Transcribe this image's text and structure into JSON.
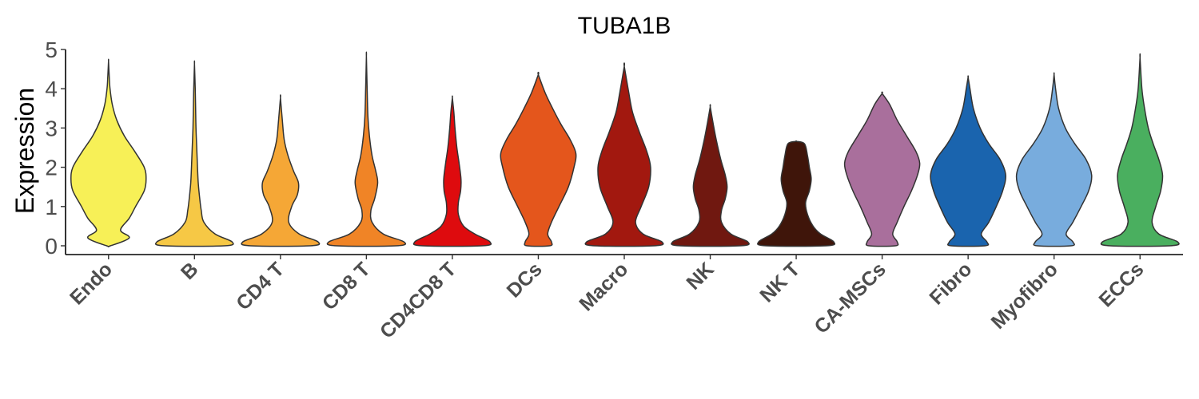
{
  "chart_data": {
    "type": "violin",
    "title": "TUBA1B",
    "xlabel": "",
    "ylabel": "Expression",
    "ylim": [
      0,
      5
    ],
    "yticks": [
      0,
      1,
      2,
      3,
      4,
      5
    ],
    "grid": false,
    "legend": "none",
    "categories": [
      "Endo",
      "B",
      "CD4 T",
      "CD8 T",
      "CD4CD8 T",
      "DCs",
      "Macro",
      "NK",
      "NK T",
      "CA-MSCs",
      "Fibro",
      "Myofibro",
      "ECCs"
    ],
    "colors": [
      "#F7F057",
      "#F6C845",
      "#F5A736",
      "#F08426",
      "#DE0B0E",
      "#E4561C",
      "#A2180F",
      "#701810",
      "#3F150A",
      "#A96F9C",
      "#1A64AE",
      "#78ACDD",
      "#4AAF5F"
    ],
    "max_values": [
      4.7,
      4.63,
      3.77,
      4.83,
      3.77,
      4.36,
      4.57,
      3.54,
      2.66,
      3.88,
      4.29,
      4.36,
      4.79
    ],
    "density_profiles": [
      [
        [
          0.0,
          0.05
        ],
        [
          0.2,
          0.55
        ],
        [
          0.4,
          0.32
        ],
        [
          0.7,
          0.55
        ],
        [
          1.0,
          0.72
        ],
        [
          1.4,
          0.95
        ],
        [
          1.7,
          1.0
        ],
        [
          2.0,
          0.95
        ],
        [
          2.4,
          0.7
        ],
        [
          2.8,
          0.42
        ],
        [
          3.2,
          0.22
        ],
        [
          3.6,
          0.1
        ],
        [
          4.0,
          0.04
        ],
        [
          4.3,
          0.02
        ],
        [
          4.7,
          0.0
        ]
      ],
      [
        [
          0.0,
          0.8
        ],
        [
          0.1,
          1.0
        ],
        [
          0.3,
          0.55
        ],
        [
          0.6,
          0.25
        ],
        [
          0.9,
          0.18
        ],
        [
          1.2,
          0.14
        ],
        [
          1.6,
          0.1
        ],
        [
          2.0,
          0.08
        ],
        [
          2.5,
          0.06
        ],
        [
          3.0,
          0.04
        ],
        [
          3.5,
          0.03
        ],
        [
          4.0,
          0.02
        ],
        [
          4.63,
          0.0
        ]
      ],
      [
        [
          0.0,
          0.8
        ],
        [
          0.1,
          1.0
        ],
        [
          0.3,
          0.5
        ],
        [
          0.6,
          0.22
        ],
        [
          1.0,
          0.3
        ],
        [
          1.3,
          0.45
        ],
        [
          1.6,
          0.48
        ],
        [
          1.9,
          0.35
        ],
        [
          2.3,
          0.2
        ],
        [
          2.7,
          0.1
        ],
        [
          3.2,
          0.05
        ],
        [
          3.77,
          0.0
        ]
      ],
      [
        [
          0.0,
          0.8
        ],
        [
          0.1,
          1.0
        ],
        [
          0.3,
          0.45
        ],
        [
          0.6,
          0.15
        ],
        [
          0.9,
          0.12
        ],
        [
          1.2,
          0.22
        ],
        [
          1.6,
          0.3
        ],
        [
          1.9,
          0.25
        ],
        [
          2.3,
          0.15
        ],
        [
          2.8,
          0.08
        ],
        [
          3.3,
          0.04
        ],
        [
          4.0,
          0.02
        ],
        [
          4.83,
          0.0
        ]
      ],
      [
        [
          0.0,
          0.8
        ],
        [
          0.1,
          1.0
        ],
        [
          0.3,
          0.6
        ],
        [
          0.5,
          0.3
        ],
        [
          0.8,
          0.16
        ],
        [
          1.1,
          0.16
        ],
        [
          1.4,
          0.22
        ],
        [
          1.7,
          0.23
        ],
        [
          2.1,
          0.18
        ],
        [
          2.5,
          0.12
        ],
        [
          3.0,
          0.07
        ],
        [
          3.4,
          0.04
        ],
        [
          3.77,
          0.0
        ]
      ],
      [
        [
          0.0,
          0.3
        ],
        [
          0.1,
          0.35
        ],
        [
          0.3,
          0.25
        ],
        [
          0.6,
          0.35
        ],
        [
          1.0,
          0.55
        ],
        [
          1.5,
          0.8
        ],
        [
          2.0,
          0.95
        ],
        [
          2.35,
          1.0
        ],
        [
          2.7,
          0.85
        ],
        [
          3.1,
          0.6
        ],
        [
          3.5,
          0.38
        ],
        [
          3.9,
          0.18
        ],
        [
          4.36,
          0.0
        ]
      ],
      [
        [
          0.0,
          0.8
        ],
        [
          0.1,
          1.0
        ],
        [
          0.3,
          0.5
        ],
        [
          0.6,
          0.3
        ],
        [
          1.0,
          0.45
        ],
        [
          1.5,
          0.65
        ],
        [
          2.0,
          0.7
        ],
        [
          2.4,
          0.6
        ],
        [
          2.9,
          0.4
        ],
        [
          3.4,
          0.22
        ],
        [
          3.9,
          0.12
        ],
        [
          4.57,
          0.0
        ]
      ],
      [
        [
          0.0,
          0.8
        ],
        [
          0.1,
          1.0
        ],
        [
          0.3,
          0.55
        ],
        [
          0.6,
          0.3
        ],
        [
          0.9,
          0.3
        ],
        [
          1.2,
          0.4
        ],
        [
          1.5,
          0.45
        ],
        [
          1.8,
          0.4
        ],
        [
          2.2,
          0.28
        ],
        [
          2.7,
          0.16
        ],
        [
          3.1,
          0.08
        ],
        [
          3.54,
          0.0
        ]
      ],
      [
        [
          0.0,
          0.8
        ],
        [
          0.1,
          1.0
        ],
        [
          0.3,
          0.65
        ],
        [
          0.5,
          0.45
        ],
        [
          0.8,
          0.3
        ],
        [
          1.1,
          0.25
        ],
        [
          1.4,
          0.35
        ],
        [
          1.7,
          0.4
        ],
        [
          2.0,
          0.35
        ],
        [
          2.3,
          0.3
        ],
        [
          2.6,
          0.22
        ],
        [
          2.66,
          0.0
        ]
      ],
      [
        [
          0.0,
          0.35
        ],
        [
          0.1,
          0.4
        ],
        [
          0.3,
          0.28
        ],
        [
          0.6,
          0.4
        ],
        [
          1.0,
          0.58
        ],
        [
          1.4,
          0.78
        ],
        [
          1.8,
          0.94
        ],
        [
          2.1,
          1.0
        ],
        [
          2.4,
          0.9
        ],
        [
          2.8,
          0.65
        ],
        [
          3.2,
          0.4
        ],
        [
          3.6,
          0.2
        ],
        [
          3.88,
          0.0
        ]
      ],
      [
        [
          0.0,
          0.45
        ],
        [
          0.1,
          0.5
        ],
        [
          0.3,
          0.35
        ],
        [
          0.6,
          0.55
        ],
        [
          1.0,
          0.75
        ],
        [
          1.4,
          0.92
        ],
        [
          1.8,
          1.0
        ],
        [
          2.2,
          0.85
        ],
        [
          2.6,
          0.55
        ],
        [
          3.0,
          0.32
        ],
        [
          3.5,
          0.14
        ],
        [
          4.0,
          0.05
        ],
        [
          4.29,
          0.0
        ]
      ],
      [
        [
          0.0,
          0.45
        ],
        [
          0.1,
          0.5
        ],
        [
          0.3,
          0.32
        ],
        [
          0.6,
          0.5
        ],
        [
          1.0,
          0.72
        ],
        [
          1.4,
          0.92
        ],
        [
          1.8,
          1.0
        ],
        [
          2.2,
          0.85
        ],
        [
          2.6,
          0.55
        ],
        [
          3.0,
          0.3
        ],
        [
          3.5,
          0.12
        ],
        [
          4.0,
          0.04
        ],
        [
          4.36,
          0.0
        ]
      ],
      [
        [
          0.0,
          0.8
        ],
        [
          0.1,
          1.0
        ],
        [
          0.3,
          0.5
        ],
        [
          0.6,
          0.32
        ],
        [
          1.0,
          0.42
        ],
        [
          1.4,
          0.55
        ],
        [
          1.8,
          0.6
        ],
        [
          2.2,
          0.5
        ],
        [
          2.6,
          0.35
        ],
        [
          3.0,
          0.22
        ],
        [
          3.5,
          0.12
        ],
        [
          4.0,
          0.05
        ],
        [
          4.79,
          0.0
        ]
      ]
    ]
  }
}
